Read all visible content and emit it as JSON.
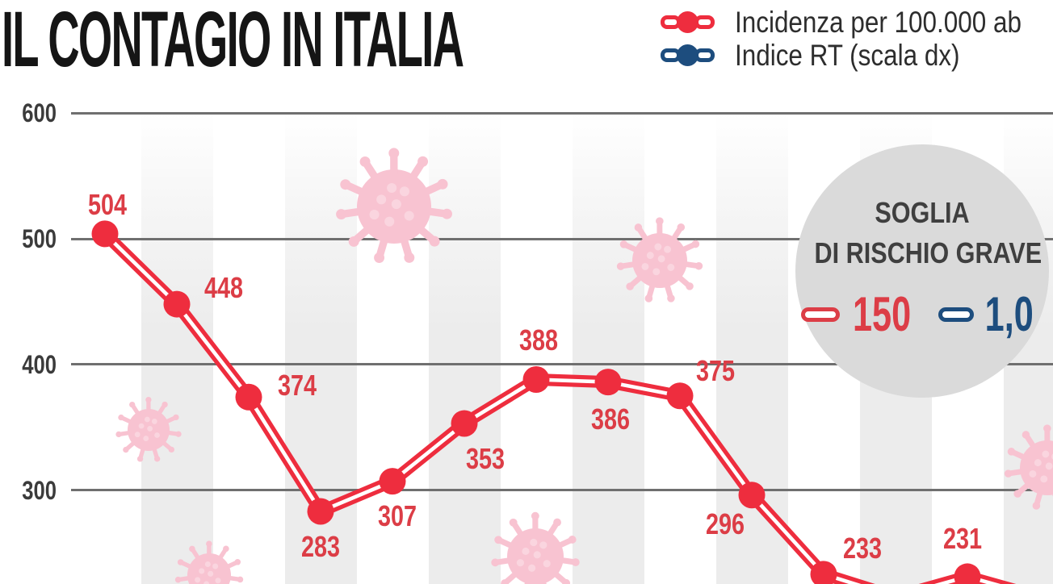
{
  "title": "IL CONTAGIO IN ITALIA",
  "legend": {
    "items": [
      {
        "id": "incidenza",
        "label": "Incidenza per 100.000 ab",
        "color": "#ee2d3e"
      },
      {
        "id": "rt",
        "label": "Indice RT (scala dx)",
        "color": "#1d4d7e"
      }
    ]
  },
  "threshold_badge": {
    "line1": "SOGLIA",
    "line2": "DI RISCHIO GRAVE",
    "incidence_threshold": "150",
    "rt_threshold": "1,0",
    "incidence_color": "#dc3d46",
    "rt_color": "#1d4d7e",
    "background": "#dadada"
  },
  "chart_data": {
    "type": "line",
    "title": "IL CONTAGIO IN ITALIA",
    "series": [
      {
        "name": "Incidenza per 100.000 ab",
        "color": "#ee2d3e",
        "marker": "filled circle on double line",
        "values": [
          504,
          448,
          374,
          283,
          307,
          353,
          388,
          386,
          375,
          296,
          233,
          null,
          231,
          null
        ],
        "values_note": "null entries are points of the polyline that fall below the visible crop (no value label visible)"
      },
      {
        "name": "Indice RT (scala dx)",
        "color": "#1d4d7e",
        "values": [],
        "values_note": "listed in legend with right-hand scale; no data points visible in this crop"
      }
    ],
    "y_axis": {
      "side": "left",
      "ticks": [
        600,
        500,
        400,
        300
      ],
      "tick_color": "#3b3b3b",
      "gridlines": true,
      "gridline_color": "#6f6f6f"
    },
    "x_axis": {
      "tick_labels_visible": false
    },
    "legend_position": "top-right",
    "background_style": "alternating white and light-gray vertical stripes with decorative pink coronavirus icons"
  }
}
